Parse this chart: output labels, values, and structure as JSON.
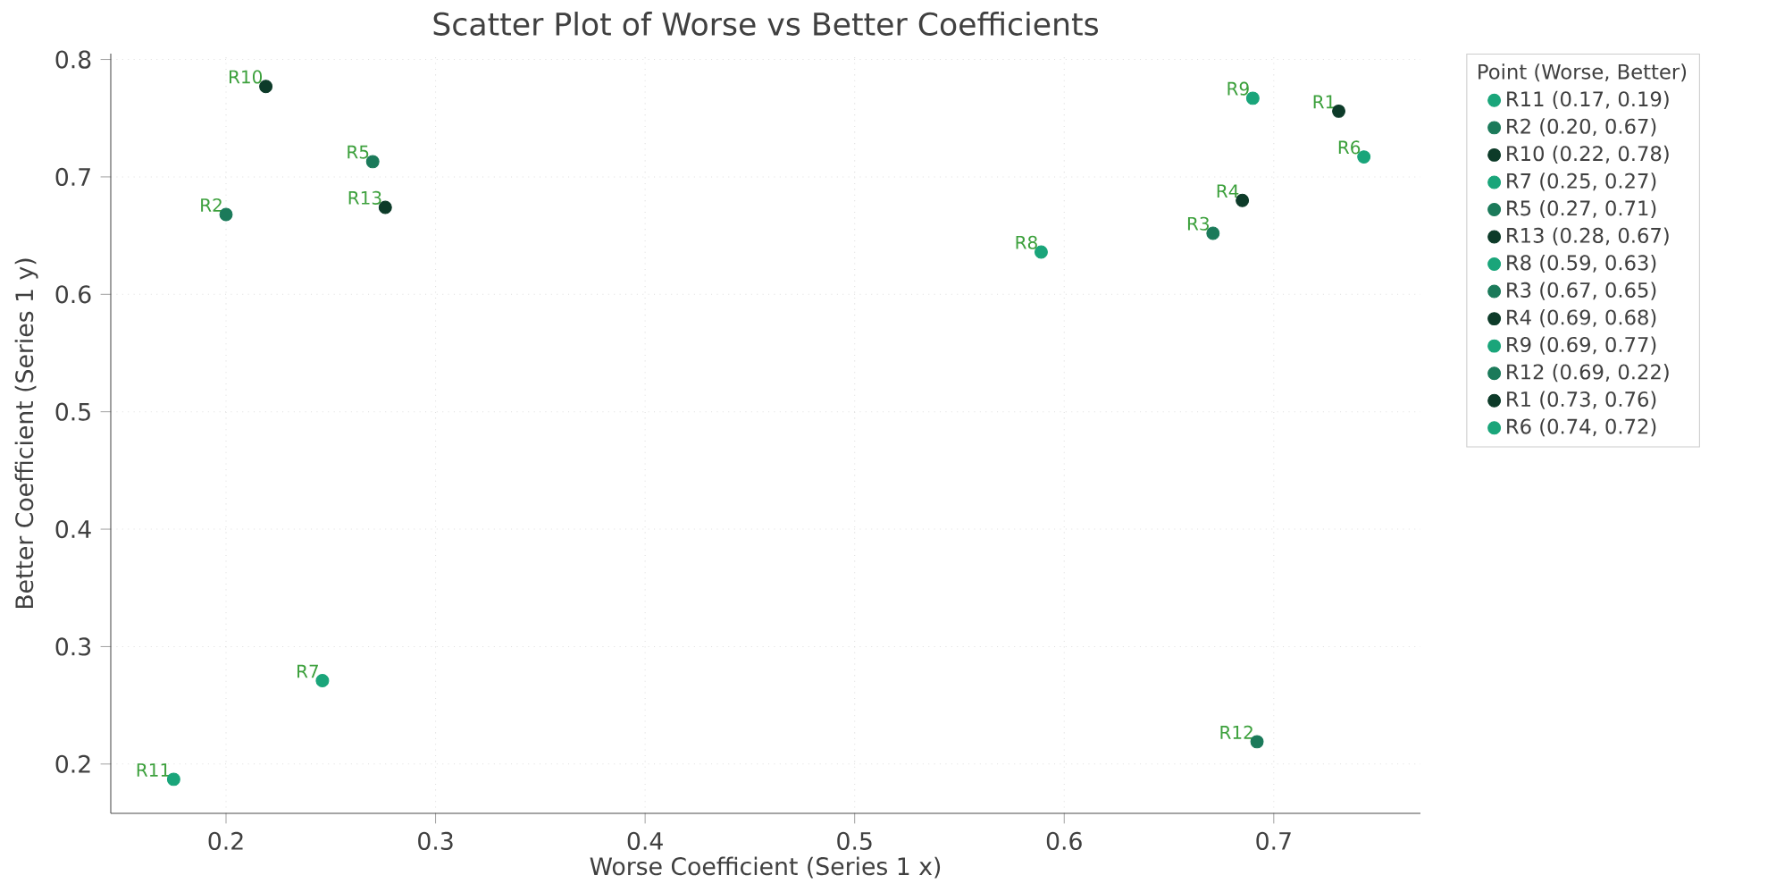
{
  "chart_data": {
    "type": "scatter",
    "title": "Scatter Plot of Worse vs Better Coefficients",
    "xlabel": "Worse Coefficient (Series 1 x)",
    "ylabel": "Better Coefficient (Series 1 y)",
    "legend_title": "Point (Worse, Better)",
    "legend": "right",
    "grid": true,
    "marker": "circle",
    "xlim": [
      0.145,
      0.77
    ],
    "ylim": [
      0.158,
      0.805
    ],
    "xticks": [
      0.2,
      0.3,
      0.4,
      0.5,
      0.6,
      0.7
    ],
    "yticks": [
      0.2,
      0.3,
      0.4,
      0.5,
      0.6,
      0.7,
      0.8
    ],
    "series": [
      {
        "name": "R11 (0.17, 0.19)",
        "color": "#1aa57a",
        "x": [
          0.175
        ],
        "values": [
          0.187
        ]
      },
      {
        "name": "R2 (0.20, 0.67)",
        "color": "#1b7a5a",
        "x": [
          0.2
        ],
        "values": [
          0.668
        ]
      },
      {
        "name": "R10 (0.22, 0.78)",
        "color": "#0d3b29",
        "x": [
          0.219
        ],
        "values": [
          0.777
        ]
      },
      {
        "name": "R7 (0.25, 0.27)",
        "color": "#1aa57a",
        "x": [
          0.246
        ],
        "values": [
          0.271
        ]
      },
      {
        "name": "R5 (0.27, 0.71)",
        "color": "#1b7a5a",
        "x": [
          0.27
        ],
        "values": [
          0.713
        ]
      },
      {
        "name": "R13 (0.28, 0.67)",
        "color": "#0d3b29",
        "x": [
          0.276
        ],
        "values": [
          0.674
        ]
      },
      {
        "name": "R8 (0.59, 0.63)",
        "color": "#1aa57a",
        "x": [
          0.589
        ],
        "values": [
          0.636
        ]
      },
      {
        "name": "R3 (0.67, 0.65)",
        "color": "#1b7a5a",
        "x": [
          0.671
        ],
        "values": [
          0.652
        ]
      },
      {
        "name": "R4 (0.69, 0.68)",
        "color": "#0d3b29",
        "x": [
          0.685
        ],
        "values": [
          0.68
        ]
      },
      {
        "name": "R9 (0.69, 0.77)",
        "color": "#1aa57a",
        "x": [
          0.69
        ],
        "values": [
          0.767
        ]
      },
      {
        "name": "R12 (0.69, 0.22)",
        "color": "#1b7a5a",
        "x": [
          0.692
        ],
        "values": [
          0.219
        ]
      },
      {
        "name": "R1 (0.73, 0.76)",
        "color": "#0d3b29",
        "x": [
          0.731
        ],
        "values": [
          0.756
        ]
      },
      {
        "name": "R6 (0.74, 0.72)",
        "color": "#1aa57a",
        "x": [
          0.743
        ],
        "values": [
          0.717
        ]
      }
    ],
    "annotations": [
      {
        "text": "R11",
        "x": 0.175,
        "y": 0.187
      },
      {
        "text": "R2",
        "x": 0.2,
        "y": 0.668
      },
      {
        "text": "R10",
        "x": 0.219,
        "y": 0.777
      },
      {
        "text": "R7",
        "x": 0.246,
        "y": 0.271
      },
      {
        "text": "R5",
        "x": 0.27,
        "y": 0.713
      },
      {
        "text": "R13",
        "x": 0.276,
        "y": 0.674
      },
      {
        "text": "R8",
        "x": 0.589,
        "y": 0.636
      },
      {
        "text": "R3",
        "x": 0.671,
        "y": 0.652
      },
      {
        "text": "R4",
        "x": 0.685,
        "y": 0.68
      },
      {
        "text": "R9",
        "x": 0.69,
        "y": 0.767
      },
      {
        "text": "R12",
        "x": 0.692,
        "y": 0.219
      },
      {
        "text": "R1",
        "x": 0.731,
        "y": 0.756
      },
      {
        "text": "R6",
        "x": 0.743,
        "y": 0.717
      }
    ]
  }
}
